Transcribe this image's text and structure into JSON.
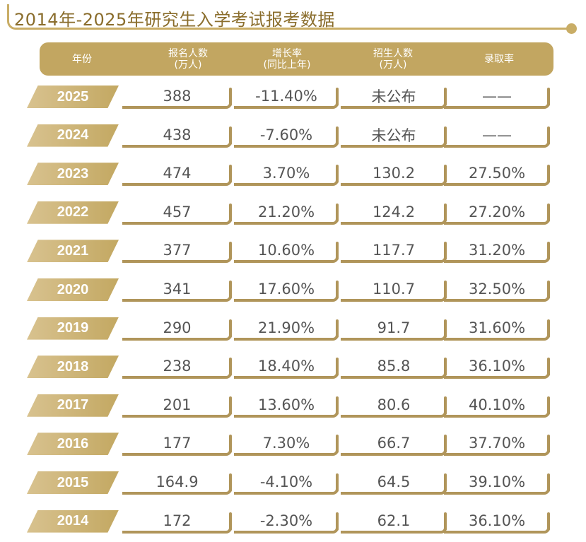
{
  "title": "2014年-2025年研究生入学考试报考数据",
  "headers": [
    {
      "line1": "年份",
      "line2": ""
    },
    {
      "line1": "报名人数",
      "line2": "(万人)"
    },
    {
      "line1": "增长率",
      "line2": "(同比上年)"
    },
    {
      "line1": "招生人数",
      "line2": "(万人)"
    },
    {
      "line1": "录取率",
      "line2": ""
    }
  ],
  "rows": [
    {
      "year": "2025",
      "applicants": "388",
      "growth": "-11.40%",
      "enrolled": "未公布",
      "rate": "——"
    },
    {
      "year": "2024",
      "applicants": "438",
      "growth": "-7.60%",
      "enrolled": "未公布",
      "rate": "——"
    },
    {
      "year": "2023",
      "applicants": "474",
      "growth": "3.70%",
      "enrolled": "130.2",
      "rate": "27.50%"
    },
    {
      "year": "2022",
      "applicants": "457",
      "growth": "21.20%",
      "enrolled": "124.2",
      "rate": "27.20%"
    },
    {
      "year": "2021",
      "applicants": "377",
      "growth": "10.60%",
      "enrolled": "117.7",
      "rate": "31.20%"
    },
    {
      "year": "2020",
      "applicants": "341",
      "growth": "17.60%",
      "enrolled": "110.7",
      "rate": "32.50%"
    },
    {
      "year": "2019",
      "applicants": "290",
      "growth": "21.90%",
      "enrolled": "91.7",
      "rate": "31.60%"
    },
    {
      "year": "2018",
      "applicants": "238",
      "growth": "18.40%",
      "enrolled": "85.8",
      "rate": "36.10%"
    },
    {
      "year": "2017",
      "applicants": "201",
      "growth": "13.60%",
      "enrolled": "80.6",
      "rate": "40.10%"
    },
    {
      "year": "2016",
      "applicants": "177",
      "growth": "7.30%",
      "enrolled": "66.7",
      "rate": "37.70%"
    },
    {
      "year": "2015",
      "applicants": "164.9",
      "growth": "-4.10%",
      "enrolled": "64.5",
      "rate": "39.10%"
    },
    {
      "year": "2014",
      "applicants": "172",
      "growth": "-2.30%",
      "enrolled": "62.1",
      "rate": "36.10%"
    }
  ],
  "colors": {
    "gold": "#c2a661",
    "gold_dark": "#b0955a",
    "title_text": "#8a6d2c",
    "cell_text": "#555555"
  }
}
